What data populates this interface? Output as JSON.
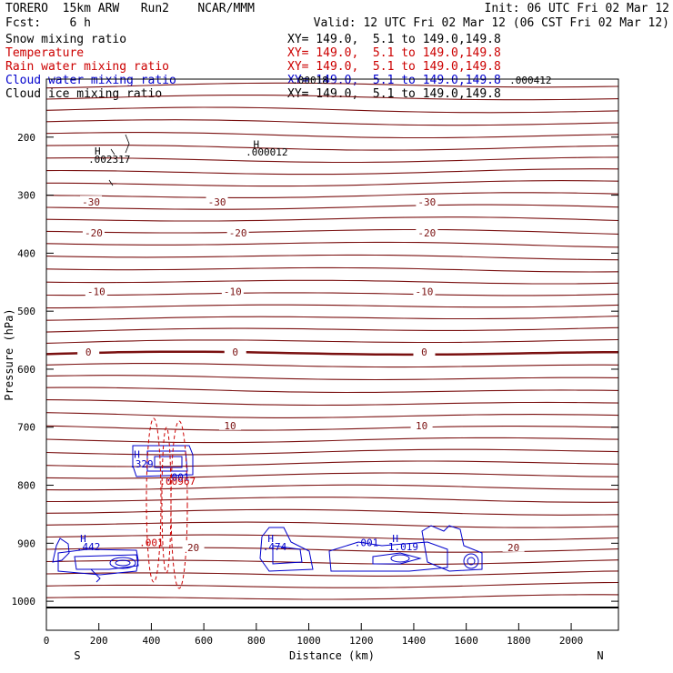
{
  "header": {
    "title_left": "TORERO  15km ARW   Run2    NCAR/MMM",
    "init": "Init: 06 UTC Fri 02 Mar 12",
    "fcst": "Fcst:    6 h",
    "valid": "Valid: 12 UTC Fri 02 Mar 12 (06 CST Fri 02 Mar 12)"
  },
  "legend": [
    {
      "label": "Snow mixing ratio",
      "xy": "XY= 149.0,  5.1 to 149.0,149.8",
      "color": "#000000"
    },
    {
      "label": "Temperature",
      "xy": "XY= 149.0,  5.1 to 149.0,149.8",
      "color": "#cc0000"
    },
    {
      "label": "Rain water mixing ratio",
      "xy": "XY= 149.0,  5.1 to 149.0,149.8",
      "color": "#cc0000"
    },
    {
      "label": "Cloud water mixing ratio",
      "xy": "XY= 149.0,  5.1 to 149.0,149.8",
      "color": "#0000cc"
    },
    {
      "label": "Cloud ice mixing ratio",
      "xy": "XY= 149.0,  5.1 to 149.0,149.8",
      "color": "#000000"
    }
  ],
  "chart_data": {
    "type": "contour-cross-section",
    "xlabel": "Distance (km)",
    "ylabel": "Pressure (hPa)",
    "xlim": [
      0,
      2180
    ],
    "ylim": [
      1050,
      100
    ],
    "x_ticks": [
      0,
      200,
      400,
      600,
      800,
      1000,
      1200,
      1400,
      1600,
      1800,
      2000
    ],
    "y_ticks": [
      200,
      300,
      400,
      500,
      600,
      700,
      800,
      900,
      1000
    ],
    "end_labels": {
      "left": "S",
      "right": "N"
    },
    "temperature_levels": [
      {
        "label": "-30",
        "x": [
          170,
          650,
          1450
        ],
        "p": 312
      },
      {
        "label": "-20",
        "x": [
          180,
          730,
          1450
        ],
        "p": 365
      },
      {
        "label": "-10",
        "x": [
          190,
          710,
          1440
        ],
        "p": 466
      },
      {
        "label": "0",
        "x": [
          160,
          720,
          1440
        ],
        "p": 570
      },
      {
        "label": "10",
        "x": [
          700,
          1430
        ],
        "p": 697
      },
      {
        "label": "20",
        "x": [
          560,
          1780
        ],
        "p": 907
      }
    ],
    "annotations": [
      {
        "text": "H",
        "x": 195,
        "p": 230,
        "color": "#000000"
      },
      {
        "text": ".002317",
        "x": 240,
        "p": 244,
        "color": "#000000"
      },
      {
        "text": "H",
        "x": 800,
        "p": 218,
        "color": "#000000"
      },
      {
        "text": ".000012",
        "x": 840,
        "p": 232,
        "color": "#000000"
      },
      {
        "text": ".00018",
        "x": 1005,
        "p": 108,
        "color": "#000000"
      },
      {
        "text": ".000412",
        "x": 1845,
        "p": 108,
        "color": "#000000"
      },
      {
        "text": "H",
        "x": 345,
        "p": 753,
        "color": "#0000cc"
      },
      {
        "text": ".329",
        "x": 362,
        "p": 769,
        "color": "#0000cc"
      },
      {
        "text": ".001",
        "x": 500,
        "p": 792,
        "color": "#0000cc"
      },
      {
        "text": ".00967",
        "x": 500,
        "p": 799,
        "color": "#cc0000"
      },
      {
        "text": "H",
        "x": 140,
        "p": 898,
        "color": "#0000cc"
      },
      {
        "text": ".442",
        "x": 160,
        "p": 912,
        "color": "#0000cc"
      },
      {
        "text": "H",
        "x": 855,
        "p": 898,
        "color": "#0000cc"
      },
      {
        "text": ".474",
        "x": 870,
        "p": 912,
        "color": "#0000cc"
      },
      {
        "text": ".001",
        "x": 1220,
        "p": 905,
        "color": "#0000cc"
      },
      {
        "text": "H",
        "x": 1330,
        "p": 898,
        "color": "#0000cc"
      },
      {
        "text": "1.019",
        "x": 1360,
        "p": 912,
        "color": "#0000cc"
      },
      {
        "text": ".001",
        "x": 400,
        "p": 905,
        "color": "#cc0000"
      }
    ]
  }
}
